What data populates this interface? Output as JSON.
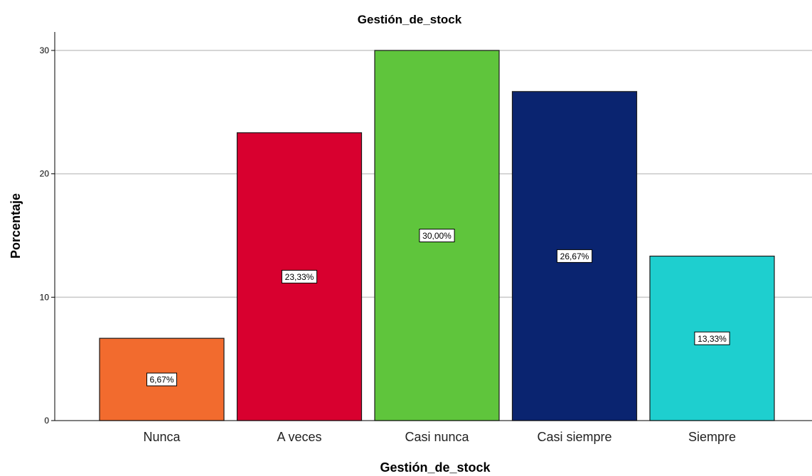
{
  "chart_data": {
    "type": "bar",
    "title": "Gestión_de_stock",
    "xlabel": "Gestión_de_stock",
    "ylabel": "Porcentaje",
    "categories": [
      "Nunca",
      "A veces",
      "Casi nunca",
      "Casi siempre",
      "Siempre"
    ],
    "values": [
      6.67,
      23.33,
      30.0,
      26.67,
      13.33
    ],
    "data_labels": [
      "6,67%",
      "23,33%",
      "30,00%",
      "26,67%",
      "13,33%"
    ],
    "colors": [
      "#f26b2e",
      "#d8002f",
      "#5fc53c",
      "#0a2470",
      "#1ecfcf"
    ],
    "ylim": [
      0,
      30
    ],
    "yticks": [
      0,
      10,
      20,
      30
    ],
    "grid": true,
    "legend": "none"
  }
}
